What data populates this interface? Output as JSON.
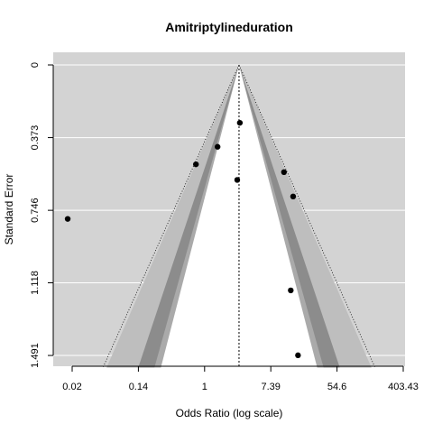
{
  "chart_data": {
    "type": "scatter",
    "subtype": "contour-enhanced funnel plot",
    "title": "Amitriptylineduration",
    "xlabel": "Odds Ratio (log scale)",
    "ylabel": "Standard Error",
    "x_scale": "log",
    "x_ticks": [
      "0.02",
      "0.14",
      "1",
      "7.39",
      "54.6",
      "403.43"
    ],
    "x_tick_values_ln": [
      -4,
      -2,
      0,
      2,
      4,
      6
    ],
    "y_ticks": [
      "0",
      "0.373",
      "0.746",
      "1.118",
      "1.491"
    ],
    "y_tick_values": [
      0,
      0.373,
      0.746,
      1.118,
      1.491
    ],
    "y_inverted": true,
    "ylim": [
      0,
      1.553
    ],
    "xlim_ln": [
      -5.45,
      6.2
    ],
    "summary_ln_or": 1.04,
    "contour_z": [
      1.645,
      1.96,
      2.576
    ],
    "colors": {
      "panel": "#d3d3d3",
      "gridline": "#ffffff",
      "contour_outer": "#bebebe",
      "contour_mid": "#8c8c8c",
      "contour_inner": "#aaaaaa",
      "center": "#ffffff",
      "points": "#000000"
    },
    "points": [
      {
        "or": 0.016,
        "se": 0.79
      },
      {
        "or": 0.77,
        "se": 0.51
      },
      {
        "or": 1.48,
        "se": 0.42
      },
      {
        "or": 2.9,
        "se": 0.297
      },
      {
        "or": 2.68,
        "se": 0.59
      },
      {
        "or": 11.0,
        "se": 0.55
      },
      {
        "or": 14.5,
        "se": 0.675
      },
      {
        "or": 13.5,
        "se": 1.157
      },
      {
        "or": 16.8,
        "se": 1.49
      }
    ]
  }
}
